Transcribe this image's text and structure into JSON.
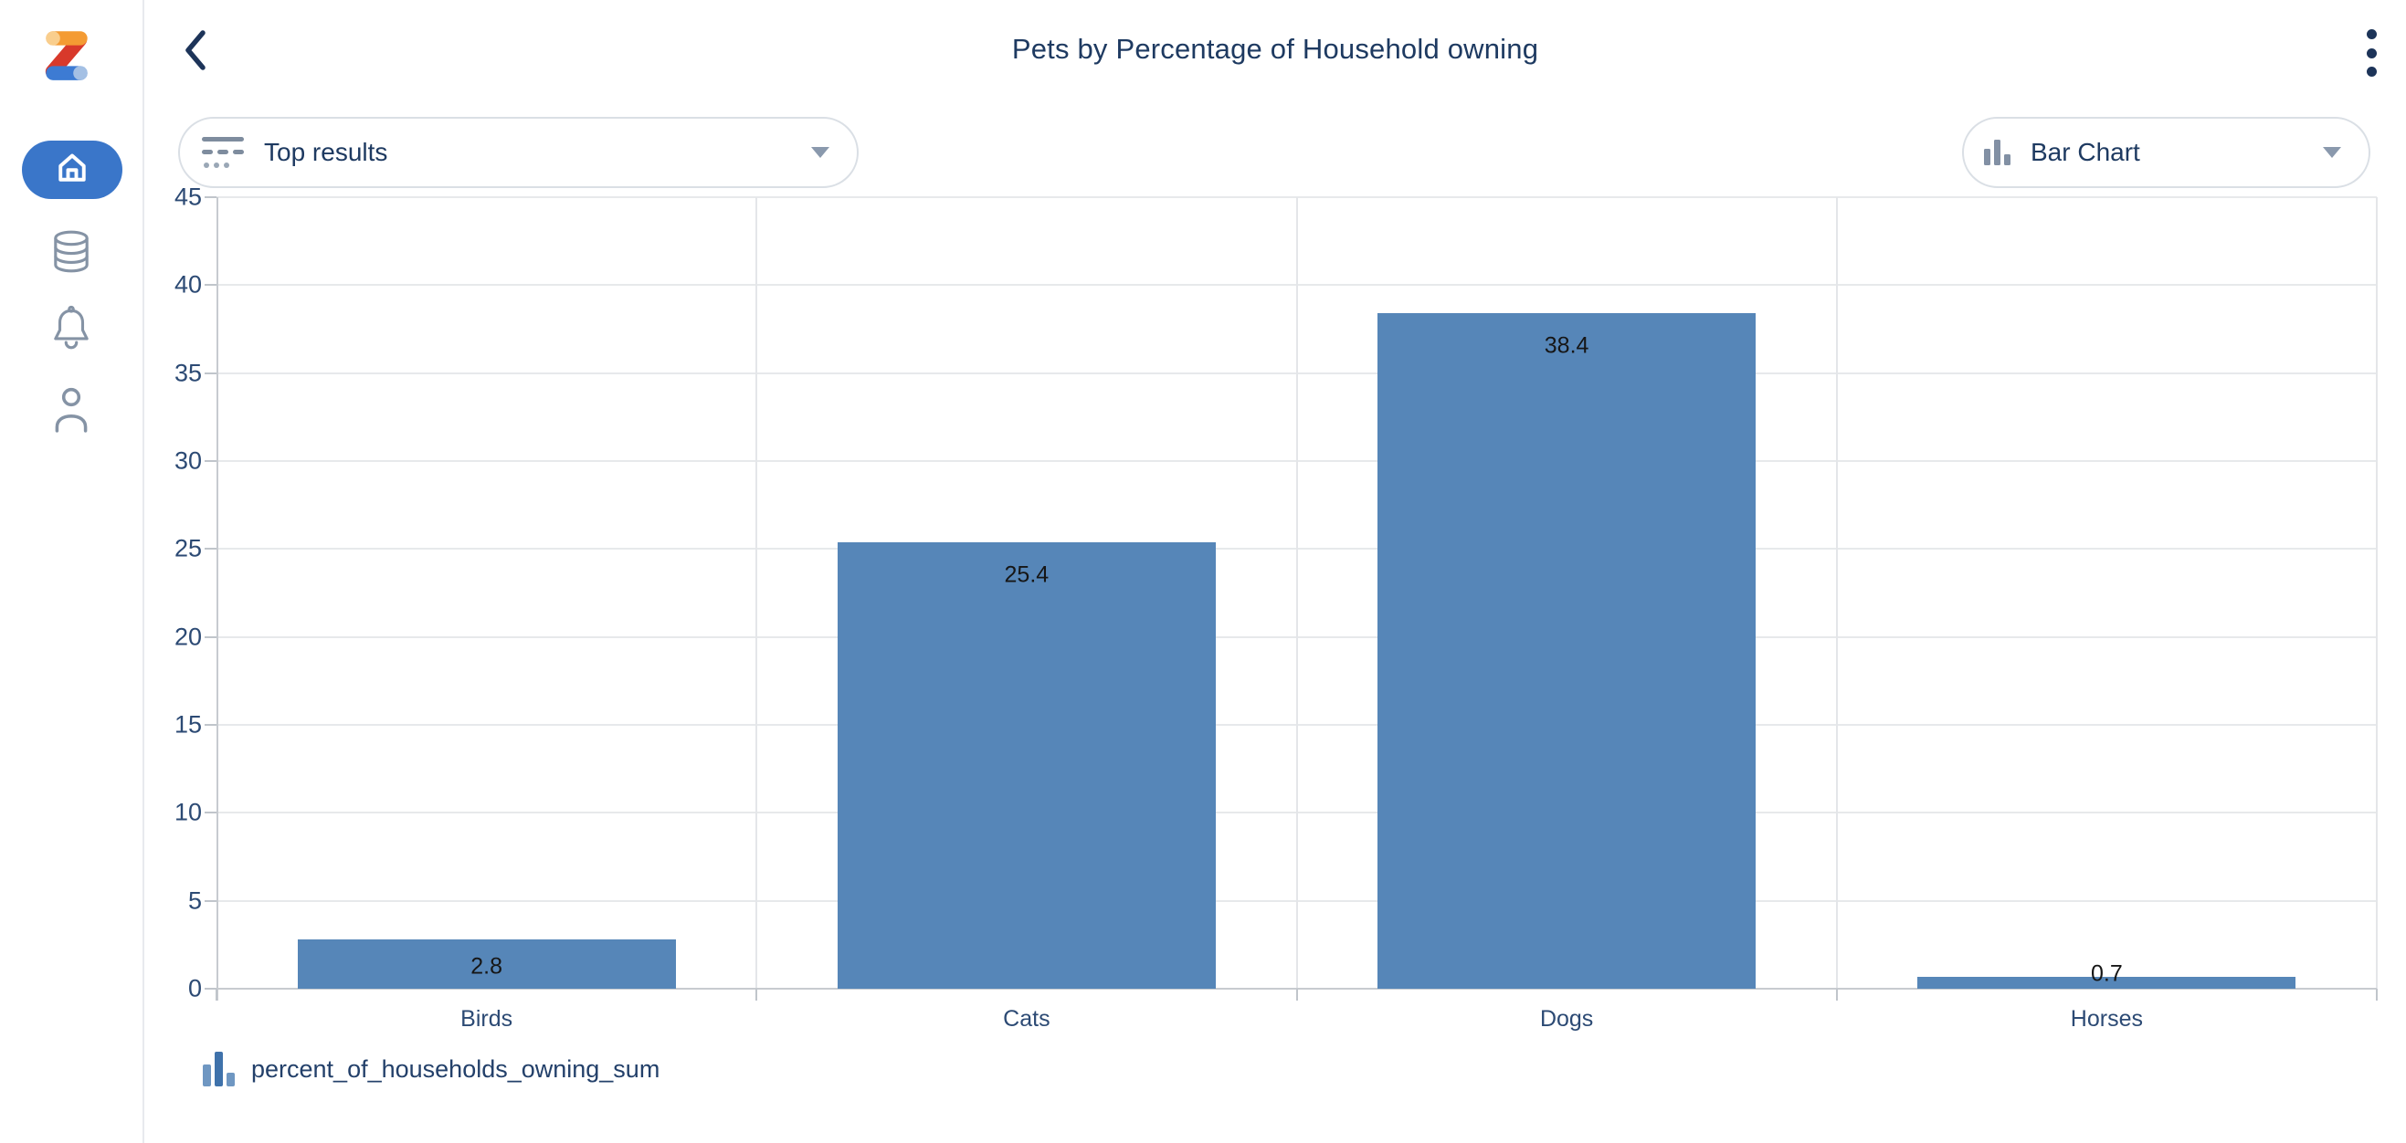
{
  "sidebar": {
    "logo_icon": "z-logo",
    "items": [
      {
        "id": "home",
        "icon": "home-icon",
        "active": true
      },
      {
        "id": "data",
        "icon": "database-icon",
        "active": false
      },
      {
        "id": "notifications",
        "icon": "bell-icon",
        "active": false
      },
      {
        "id": "profile",
        "icon": "user-icon",
        "active": false
      }
    ]
  },
  "header": {
    "title": "Pets by Percentage of Household owning",
    "back_icon": "chevron-left-icon",
    "menu_icon": "kebab-menu-icon"
  },
  "controls": {
    "results_dropdown": {
      "icon": "filter-rows-icon",
      "label": "Top results",
      "caret_icon": "chevron-down-icon"
    },
    "chart_type_dropdown": {
      "icon": "bar-chart-icon",
      "label": "Bar Chart",
      "caret_icon": "chevron-down-icon"
    }
  },
  "legend": {
    "icon": "bar-series-icon",
    "label": "percent_of_households_owning_sum"
  },
  "chart_data": {
    "type": "bar",
    "title": "Pets by Percentage of Household owning",
    "categories": [
      "Birds",
      "Cats",
      "Dogs",
      "Horses"
    ],
    "values": [
      2.8,
      25.4,
      38.4,
      0.7
    ],
    "value_labels": [
      "2.8",
      "25.4",
      "38.4",
      "0.7"
    ],
    "series": [
      {
        "name": "percent_of_households_owning_sum",
        "values": [
          2.8,
          25.4,
          38.4,
          0.7
        ]
      }
    ],
    "xlabel": "",
    "ylabel": "",
    "ylim": [
      0,
      45
    ],
    "yticks": [
      0,
      5,
      10,
      15,
      20,
      25,
      30,
      35,
      40,
      45
    ],
    "grid": true,
    "legend_position": "bottom-left",
    "bar_color": "#5686b8"
  },
  "colors": {
    "accent_blue": "#3a76c9",
    "bar_blue": "#5686b8",
    "navy_text": "#1e3a61",
    "icon_gray": "#8593a5",
    "grid_line": "#e7e9eb",
    "axis_line": "#c7cbd0"
  }
}
